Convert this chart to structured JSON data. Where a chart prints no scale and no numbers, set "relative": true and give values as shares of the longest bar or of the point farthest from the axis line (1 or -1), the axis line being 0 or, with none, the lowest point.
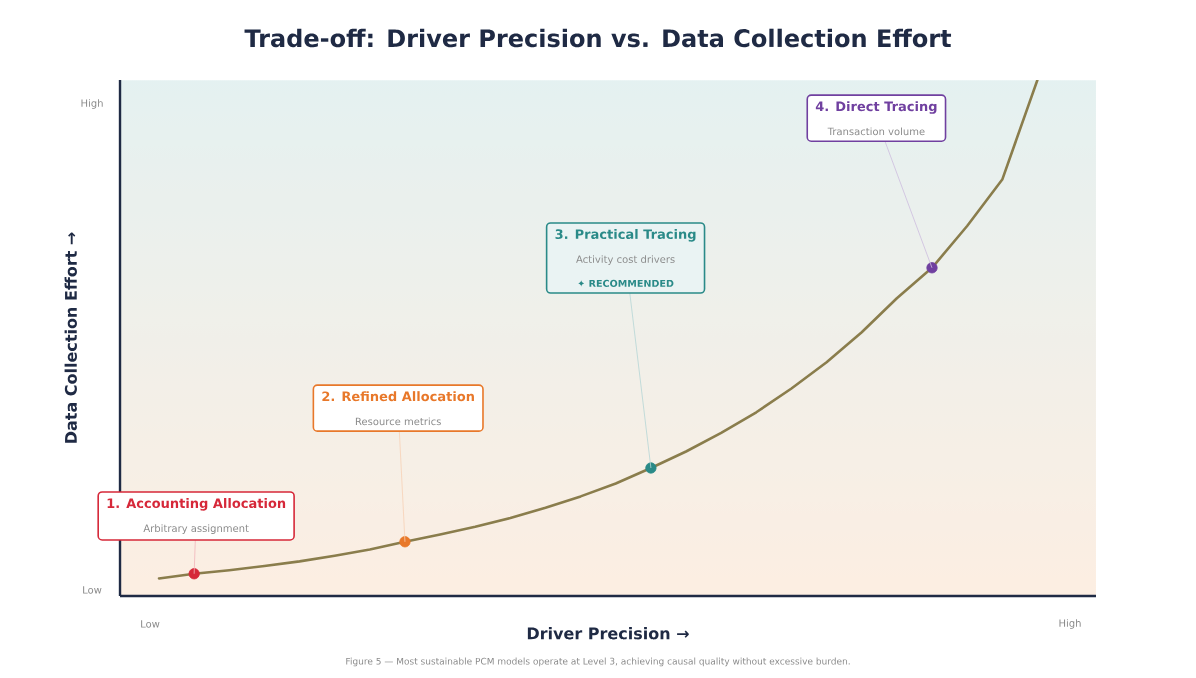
{
  "chart_data": {
    "type": "line",
    "title": "Trade-off: Driver Precision vs. Data Collection Effort",
    "xlabel": "Driver Precision →",
    "ylabel": "Data Collection Effort →",
    "relative": true,
    "categories": [
      null,
      null,
      null,
      null,
      null,
      null,
      null,
      null,
      null,
      null,
      null,
      null,
      null,
      null,
      null,
      null,
      null,
      null,
      null,
      null,
      null,
      null,
      null,
      null,
      null,
      null
    ],
    "series": [
      {
        "color": "#8a7d4c",
        "line_style": "solid",
        "colors": [
          null,
          "#d62839",
          null,
          null,
          null,
          null,
          null,
          "#e8782a",
          null,
          null,
          null,
          null,
          null,
          null,
          "#2a8a88",
          null,
          null,
          null,
          null,
          null,
          null,
          null,
          "#7040a0",
          null,
          null,
          null
        ],
        "values": [
          0.034,
          0.043,
          0.05,
          0.058,
          0.067,
          0.078,
          0.09,
          0.105,
          0.119,
          0.134,
          0.151,
          0.171,
          0.193,
          0.218,
          0.248,
          0.28,
          0.316,
          0.356,
          0.402,
          0.453,
          0.511,
          0.577,
          0.636,
          0.717,
          0.807,
          1.0
        ]
      }
    ],
    "annotations": [
      "1. Accounting Allocation",
      "Arbitrary assignment",
      "2. Refined Allocation",
      "Resource metrics",
      "3. Practical Tracing",
      "Activity cost drivers",
      "✦ RECOMMENDED",
      "4. Direct Tracing",
      "Transaction volume",
      "Low",
      "High",
      "Low",
      "High",
      "Figure 5 — Most sustainable PCM models operate at Level 3, achieving causal quality without excessive burden."
    ]
  }
}
